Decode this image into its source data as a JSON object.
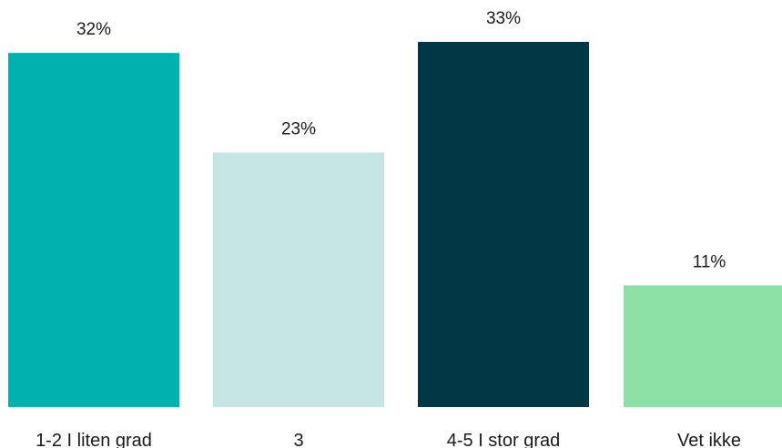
{
  "chart_data": {
    "type": "bar",
    "categories": [
      "1-2 I liten grad",
      "3",
      "4-5 I stor grad",
      "Vet ikke"
    ],
    "values": [
      32,
      23,
      33,
      11
    ],
    "value_labels": [
      "32%",
      "23%",
      "33%",
      "11%"
    ],
    "colors": [
      "#00B1B0",
      "#C5E5E5",
      "#023846",
      "#8CE1A8"
    ],
    "ylim": [
      0,
      33
    ],
    "grid": false,
    "legend": "none",
    "title": "",
    "xlabel": "",
    "ylabel": ""
  }
}
